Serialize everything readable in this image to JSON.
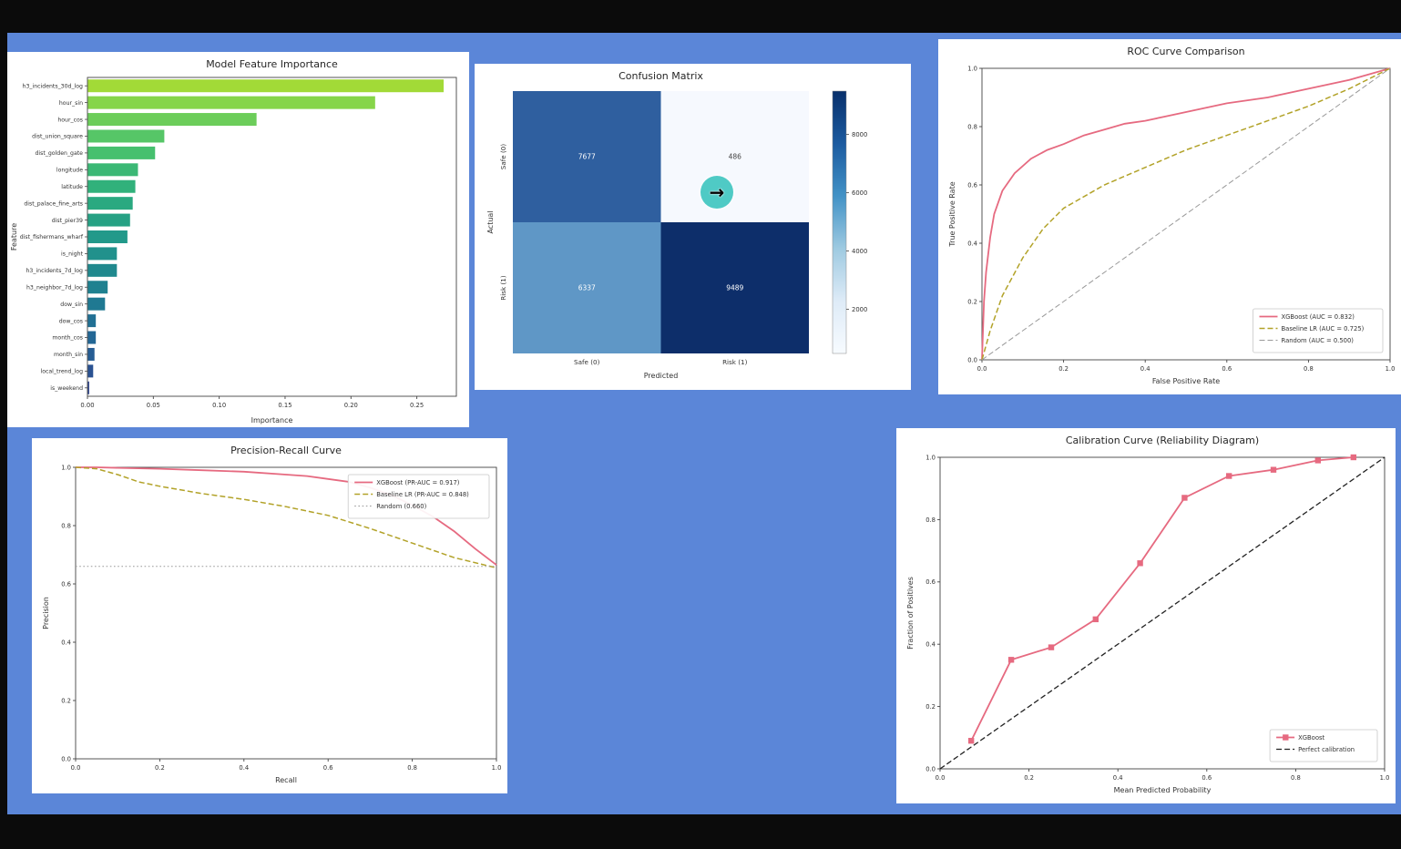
{
  "window": {
    "frame_bg": "#0b0b0b",
    "panel_bg": "#5b86d8"
  },
  "cursor": {
    "glyph": "→",
    "bg": "#4fcac5"
  },
  "chart_data": [
    {
      "id": "feature_importance",
      "type": "barh",
      "title": "Model Feature Importance",
      "xlabel": "Importance",
      "ylabel": "Feature",
      "xlim": [
        0,
        0.28
      ],
      "xticks": [
        0,
        0.05,
        0.1,
        0.15,
        0.2,
        0.25
      ],
      "xtick_decimals": 2,
      "categories": [
        "h3_incidents_30d_log",
        "hour_sin",
        "hour_cos",
        "dist_union_square",
        "dist_golden_gate",
        "longitude",
        "latitude",
        "dist_palace_fine_arts",
        "dist_pier39",
        "dist_fishermans_wharf",
        "is_night",
        "h3_incidents_7d_log",
        "h3_neighbor_7d_log",
        "dow_sin",
        "dow_cos",
        "month_cos",
        "month_sin",
        "local_trend_log",
        "is_weekend"
      ],
      "values": [
        0.27,
        0.218,
        0.128,
        0.058,
        0.051,
        0.038,
        0.036,
        0.034,
        0.032,
        0.03,
        0.022,
        0.022,
        0.015,
        0.013,
        0.006,
        0.006,
        0.005,
        0.004,
        0.001
      ],
      "colors": [
        "#a2da37",
        "#86d549",
        "#6ccd5a",
        "#56c667",
        "#46c06e",
        "#3bb875",
        "#31b17b",
        "#2aa980",
        "#26a184",
        "#22998a",
        "#21918c",
        "#20898e",
        "#1f8190",
        "#1f7992",
        "#217094",
        "#236795",
        "#265d94",
        "#2a5292",
        "#2f468e"
      ]
    },
    {
      "id": "confusion_matrix",
      "type": "heatmap",
      "title": "Confusion Matrix",
      "xlabel": "Predicted",
      "ylabel": "Actual",
      "x_categories": [
        "Safe (0)",
        "Risk (1)"
      ],
      "y_categories": [
        "Safe (0)",
        "Risk (1)"
      ],
      "values": [
        [
          7677,
          486
        ],
        [
          6337,
          9489
        ]
      ],
      "cell_colors": [
        [
          "#2f5f9f",
          "#f6f9fe"
        ],
        [
          "#5f97c6",
          "#0d2e6a"
        ]
      ],
      "text_colors": [
        [
          "#ffffff",
          "#444444"
        ],
        [
          "#ffffff",
          "#ffffff"
        ]
      ],
      "colorbar": {
        "min": 486,
        "max": 9489,
        "ticks": [
          2000,
          4000,
          6000,
          8000
        ],
        "stops_top_to_bottom": [
          "#08306b",
          "#1c5ba0",
          "#4292c6",
          "#9ecae1",
          "#deebf7",
          "#f7fbff"
        ]
      }
    },
    {
      "id": "roc",
      "type": "line",
      "title": "ROC Curve Comparison",
      "xlabel": "False Positive Rate",
      "ylabel": "True Positive Rate",
      "xlim": [
        0,
        1
      ],
      "ylim": [
        0,
        1
      ],
      "xticks": [
        0,
        0.2,
        0.4,
        0.6,
        0.8,
        1
      ],
      "yticks": [
        0,
        0.2,
        0.4,
        0.6,
        0.8,
        1
      ],
      "tick_decimals": 1,
      "legend_pos": "lower-right",
      "series": [
        {
          "name": "XGBoost (AUC = 0.832)",
          "color": "#e66a80",
          "dash": "solid",
          "width": 1.8,
          "x": [
            0,
            0.005,
            0.01,
            0.02,
            0.03,
            0.05,
            0.08,
            0.12,
            0.16,
            0.2,
            0.25,
            0.3,
            0.35,
            0.4,
            0.5,
            0.6,
            0.7,
            0.8,
            0.9,
            1
          ],
          "y": [
            0,
            0.2,
            0.3,
            0.42,
            0.5,
            0.58,
            0.64,
            0.69,
            0.72,
            0.74,
            0.77,
            0.79,
            0.81,
            0.82,
            0.85,
            0.88,
            0.9,
            0.93,
            0.96,
            1
          ]
        },
        {
          "name": "Baseline LR (AUC = 0.725)",
          "color": "#b2a228",
          "dash": "dashed",
          "width": 1.5,
          "x": [
            0,
            0.02,
            0.05,
            0.1,
            0.15,
            0.2,
            0.3,
            0.4,
            0.5,
            0.6,
            0.7,
            0.8,
            0.9,
            1
          ],
          "y": [
            0,
            0.1,
            0.22,
            0.35,
            0.45,
            0.52,
            0.6,
            0.66,
            0.72,
            0.77,
            0.82,
            0.87,
            0.93,
            1
          ]
        },
        {
          "name": "Random (AUC = 0.500)",
          "color": "#999999",
          "dash": "dashed",
          "width": 1,
          "x": [
            0,
            1
          ],
          "y": [
            0,
            1
          ]
        }
      ]
    },
    {
      "id": "precision_recall",
      "type": "line",
      "title": "Precision-Recall Curve",
      "xlabel": "Recall",
      "ylabel": "Precision",
      "xlim": [
        0,
        1
      ],
      "ylim": [
        0,
        1
      ],
      "xticks": [
        0,
        0.2,
        0.4,
        0.6,
        0.8,
        1
      ],
      "yticks": [
        0,
        0.2,
        0.4,
        0.6,
        0.8,
        1
      ],
      "tick_decimals": 1,
      "legend_pos": "upper-right",
      "series": [
        {
          "name": "XGBoost (PR-AUC = 0.917)",
          "color": "#e66a80",
          "dash": "solid",
          "width": 1.8,
          "x": [
            0,
            0.05,
            0.1,
            0.2,
            0.3,
            0.4,
            0.5,
            0.55,
            0.6,
            0.65,
            0.7,
            0.75,
            0.8,
            0.85,
            0.9,
            0.95,
            1
          ],
          "y": [
            1,
            1,
            0.998,
            0.995,
            0.99,
            0.985,
            0.975,
            0.97,
            0.96,
            0.95,
            0.93,
            0.905,
            0.87,
            0.83,
            0.78,
            0.72,
            0.665
          ]
        },
        {
          "name": "Baseline LR (PR-AUC = 0.848)",
          "color": "#b2a228",
          "dash": "dashed",
          "width": 1.5,
          "x": [
            0,
            0.05,
            0.1,
            0.15,
            0.2,
            0.3,
            0.4,
            0.5,
            0.6,
            0.7,
            0.8,
            0.9,
            1
          ],
          "y": [
            1,
            0.995,
            0.975,
            0.95,
            0.935,
            0.91,
            0.89,
            0.865,
            0.835,
            0.79,
            0.74,
            0.69,
            0.655
          ]
        },
        {
          "name": "Random (0.660)",
          "color": "#999999",
          "dash": "dotted",
          "width": 1,
          "x": [
            0,
            1
          ],
          "y": [
            0.66,
            0.66
          ]
        }
      ]
    },
    {
      "id": "calibration",
      "type": "line",
      "title": "Calibration Curve (Reliability Diagram)",
      "xlabel": "Mean Predicted Probability",
      "ylabel": "Fraction of Positives",
      "xlim": [
        0,
        1
      ],
      "ylim": [
        0,
        1
      ],
      "xticks": [
        0,
        0.2,
        0.4,
        0.6,
        0.8,
        1
      ],
      "yticks": [
        0,
        0.2,
        0.4,
        0.6,
        0.8,
        1
      ],
      "tick_decimals": 1,
      "legend_pos": "lower-right",
      "series": [
        {
          "name": "XGBoost",
          "color": "#e66a80",
          "dash": "solid",
          "width": 1.8,
          "marker": "square",
          "x": [
            0.07,
            0.16,
            0.25,
            0.35,
            0.45,
            0.55,
            0.65,
            0.75,
            0.85,
            0.93
          ],
          "y": [
            0.09,
            0.35,
            0.39,
            0.48,
            0.66,
            0.87,
            0.94,
            0.96,
            0.99,
            1
          ]
        },
        {
          "name": "Perfect calibration",
          "color": "#222222",
          "dash": "dashed",
          "width": 1.3,
          "x": [
            0,
            1
          ],
          "y": [
            0,
            1
          ]
        }
      ]
    }
  ]
}
